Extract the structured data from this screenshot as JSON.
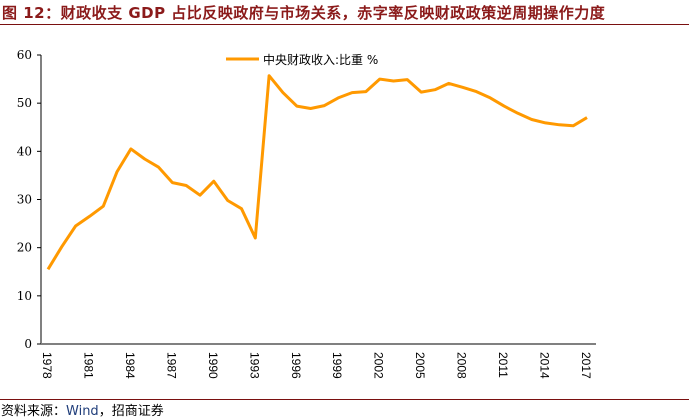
{
  "title": "图 12：财政收支 GDP 占比反映政府与市场关系，赤字率反映财政政策逆周期操作力度",
  "source": {
    "prefix": "资料来源：",
    "wind": "Wind",
    "suffix": "，招商证券"
  },
  "chart_data": {
    "type": "line",
    "title": "",
    "xlabel": "",
    "ylabel": "",
    "ylim": [
      0,
      60
    ],
    "yticks": [
      0,
      10,
      20,
      30,
      40,
      50,
      60
    ],
    "xticks": [
      "1978",
      "1981",
      "1984",
      "1987",
      "1990",
      "1993",
      "1996",
      "1999",
      "2002",
      "2005",
      "2008",
      "2011",
      "2014",
      "2017"
    ],
    "grid": false,
    "legend_position": "top-center",
    "line_color": "#FF9900",
    "x": [
      1978,
      1979,
      1980,
      1981,
      1982,
      1983,
      1984,
      1985,
      1986,
      1987,
      1988,
      1989,
      1990,
      1991,
      1992,
      1993,
      1994,
      1995,
      1996,
      1997,
      1998,
      1999,
      2000,
      2001,
      2002,
      2003,
      2004,
      2005,
      2006,
      2007,
      2008,
      2009,
      2010,
      2011,
      2012,
      2013,
      2014,
      2015,
      2016,
      2017
    ],
    "series": [
      {
        "name": "中央财政收入:比重 %",
        "values": [
          15.5,
          20.2,
          24.5,
          26.5,
          28.6,
          35.8,
          40.5,
          38.4,
          36.7,
          33.5,
          32.9,
          30.9,
          33.8,
          29.8,
          28.1,
          22.0,
          55.7,
          52.2,
          49.4,
          48.9,
          49.5,
          51.1,
          52.2,
          52.4,
          55.0,
          54.6,
          54.9,
          52.3,
          52.8,
          54.1,
          53.3,
          52.4,
          51.1,
          49.4,
          47.9,
          46.6,
          45.9,
          45.5,
          45.3,
          47.0
        ]
      }
    ]
  }
}
